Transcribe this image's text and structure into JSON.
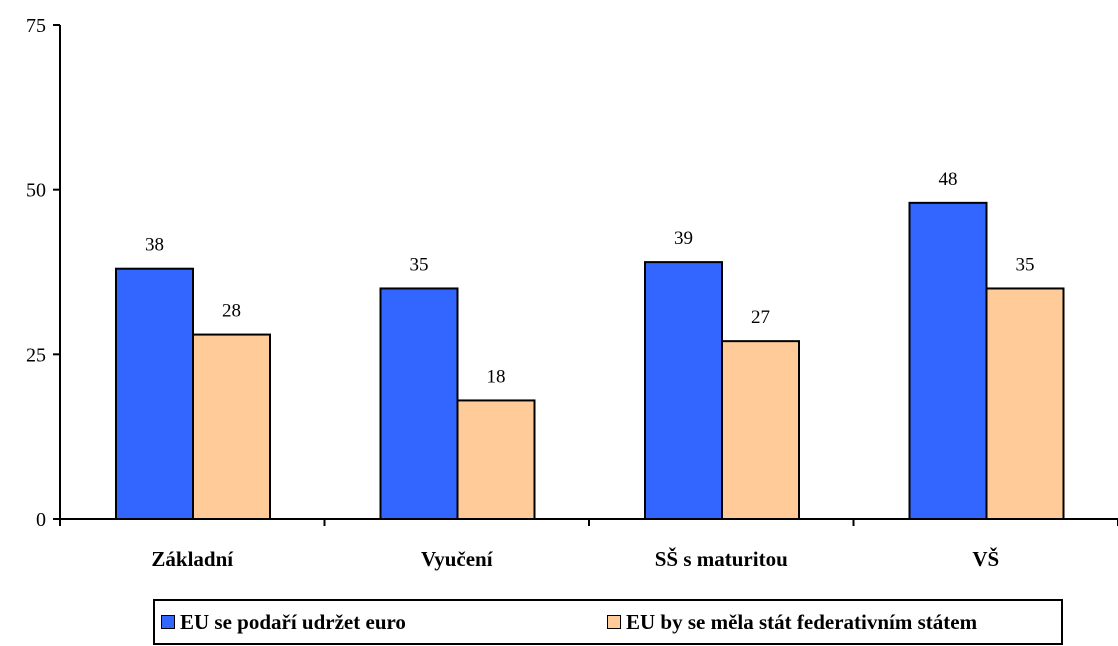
{
  "chart_data": {
    "type": "bar",
    "categories": [
      "Základní",
      "Vyučení",
      "SŠ s maturitou",
      "VŠ"
    ],
    "series": [
      {
        "name": "EU se podaří udržet euro",
        "values": [
          38,
          35,
          39,
          48
        ],
        "color": "#3366ff"
      },
      {
        "name": "EU by se měla stát federativním státem",
        "values": [
          28,
          18,
          27,
          35
        ],
        "color": "#ffcc99"
      }
    ],
    "yticks": [
      0,
      25,
      50,
      75
    ],
    "ylim": [
      0,
      75
    ],
    "grid": false,
    "legend_position": "bottom"
  }
}
